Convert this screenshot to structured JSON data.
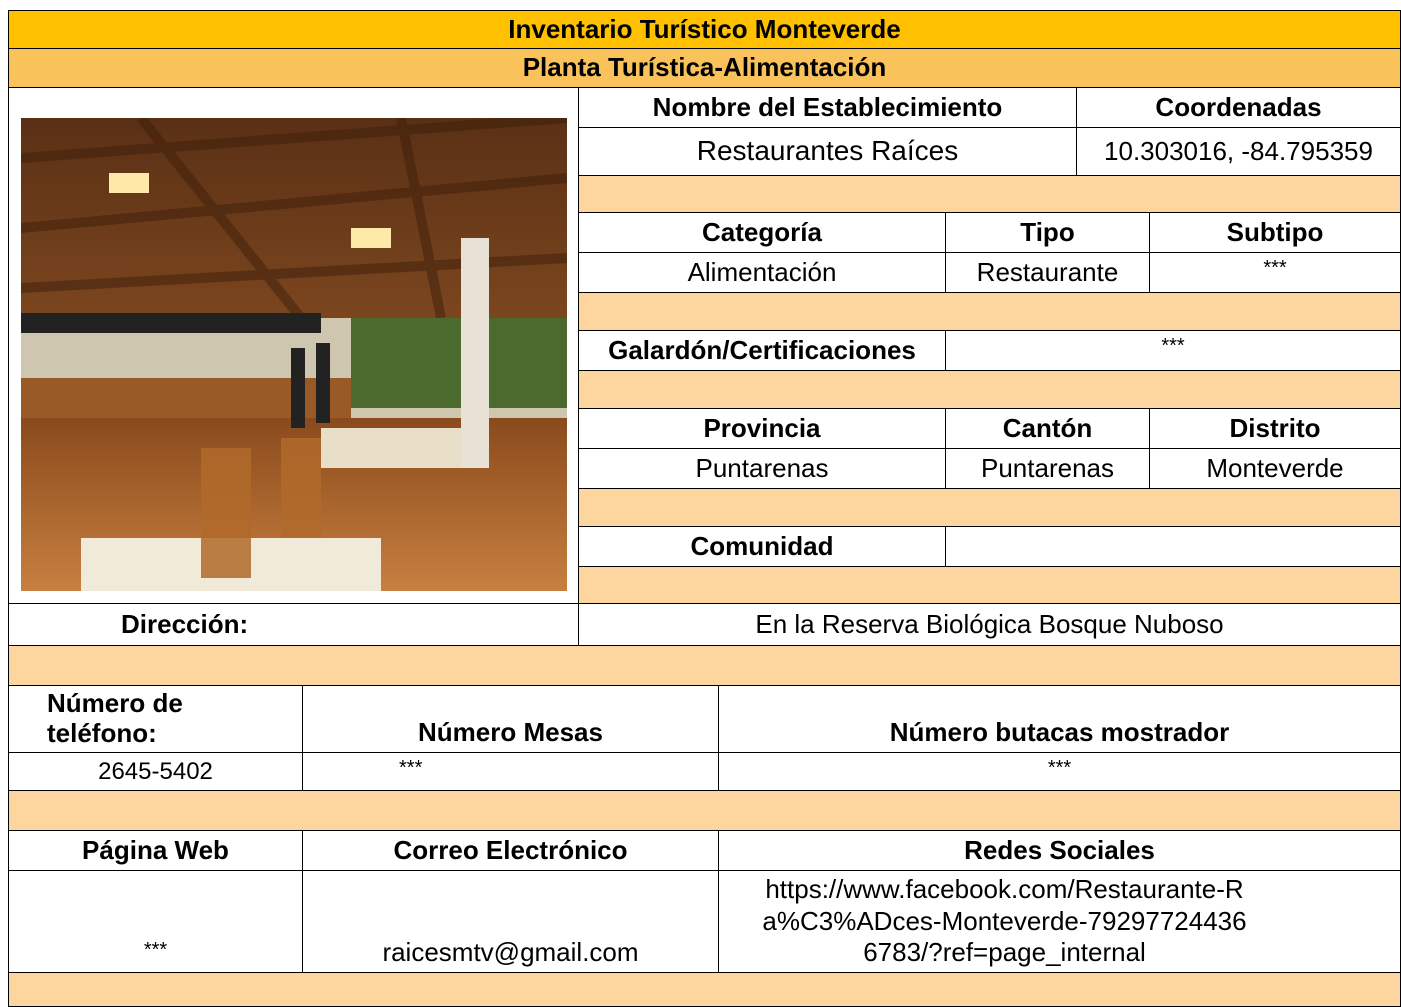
{
  "header": {
    "title": "Inventario Turístico Monteverde",
    "subtitle": "Planta Turística-Alimentación"
  },
  "establishment": {
    "name_label": "Nombre del Establecimiento",
    "name": "Restaurantes Raíces",
    "coordinates_label": "Coordenadas",
    "coordinates": "10.303016, -84.795359"
  },
  "classification": {
    "labels": [
      "Categoría",
      "Tipo",
      "Subtipo"
    ],
    "values": [
      "Alimentación",
      "Restaurante",
      "***"
    ]
  },
  "award": {
    "label": "Galardón/Certificaciones",
    "value": "***"
  },
  "location": {
    "labels": [
      "Provincia",
      "Cantón",
      "Distrito"
    ],
    "values": [
      "Puntarenas",
      "Puntarenas",
      "Monteverde"
    ]
  },
  "community": {
    "label": "Comunidad"
  },
  "address": {
    "label": "Dirección:",
    "value": "En la Reserva Biológica Bosque Nuboso"
  },
  "capacity": {
    "labels": [
      "Número de teléfono:",
      "Número Mesas",
      "Número butacas mostrador"
    ],
    "values": [
      "2645-5402",
      "***",
      "***"
    ]
  },
  "contact": {
    "labels": [
      "Página Web",
      "Correo Electrónico",
      "Redes Sociales"
    ],
    "values": [
      "***",
      "raicesmtv@gmail.com",
      "https://www.facebook.com/Restaurante-Ra%C3%ADces-Monteverde-792977244366783/?ref=page_internal"
    ]
  }
}
